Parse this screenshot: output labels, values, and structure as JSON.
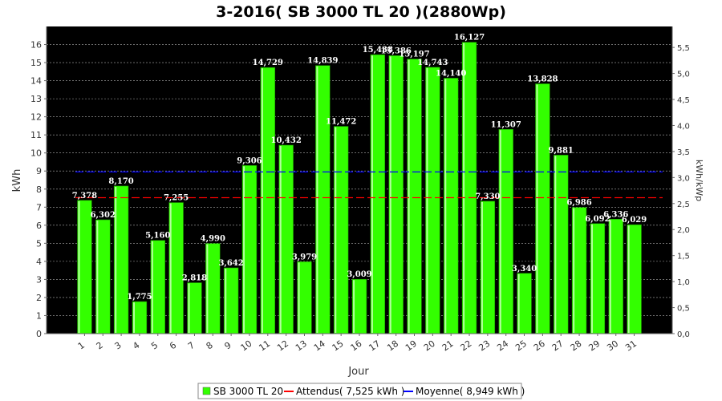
{
  "chart_data": {
    "type": "bar",
    "title": "3-2016( SB 3000 TL 20 )(2880Wp)",
    "xlabel": "Jour",
    "ylabel": "kWh",
    "y2label": "kWh/kWp",
    "categories": [
      "1",
      "2",
      "3",
      "4",
      "5",
      "6",
      "7",
      "8",
      "9",
      "10",
      "11",
      "12",
      "13",
      "14",
      "15",
      "16",
      "17",
      "18",
      "19",
      "20",
      "21",
      "22",
      "23",
      "24",
      "25",
      "26",
      "27",
      "28",
      "29",
      "30",
      "31"
    ],
    "series": [
      {
        "name": "SB 3000 TL 20",
        "color": "#33ff00",
        "values": [
          7.378,
          6.302,
          8.17,
          1.775,
          5.16,
          7.255,
          2.818,
          4.99,
          3.642,
          9.306,
          14.729,
          10.432,
          3.979,
          14.839,
          11.472,
          3.009,
          15.438,
          15.386,
          15.197,
          14.743,
          14.14,
          16.127,
          7.33,
          11.307,
          3.34,
          13.828,
          9.881,
          6.986,
          6.092,
          6.336,
          6.029
        ],
        "labels": [
          "7,378",
          "6,302",
          "8,170",
          "1,775",
          "5,160",
          "7,255",
          "2,818",
          "4,990",
          "3,642",
          "9,306",
          "14,729",
          "10,432",
          "3,979",
          "14,839",
          "11,472",
          "3,009",
          "15,438",
          "15,386",
          "15,197",
          "14,743",
          "14,140",
          "16,127",
          "7,330",
          "11,307",
          "3,340",
          "13,828",
          "9,881",
          "6,986",
          "6,092",
          "6,336",
          "6,029"
        ]
      }
    ],
    "reference_lines": [
      {
        "name": "Attendus( 7,525 kWh )",
        "value": 7.525,
        "color": "#ff0000",
        "style": "dashed"
      },
      {
        "name": "Moyenne( 8,949 kWh )",
        "value": 8.949,
        "color": "#0000ff",
        "style": "dashed"
      }
    ],
    "ylim": [
      0,
      17
    ],
    "yticks": [
      "0",
      "1",
      "2",
      "3",
      "4",
      "5",
      "6",
      "7",
      "8",
      "9",
      "10",
      "11",
      "12",
      "13",
      "14",
      "15",
      "16"
    ],
    "y2lim": [
      0,
      5.9028
    ],
    "y2ticks": [
      {
        "value": 0.0,
        "label": "0,0"
      },
      {
        "value": 0.5,
        "label": "0,5"
      },
      {
        "value": 1.0,
        "label": "1,0"
      },
      {
        "value": 1.5,
        "label": "1,5"
      },
      {
        "value": 2.0,
        "label": "2,0"
      },
      {
        "value": 2.5,
        "label": "2,5"
      },
      {
        "value": 3.0,
        "label": "3,0"
      },
      {
        "value": 3.5,
        "label": "3,5"
      },
      {
        "value": 4.0,
        "label": "4,0"
      },
      {
        "value": 4.5,
        "label": "4,5"
      },
      {
        "value": 5.0,
        "label": "5,0"
      },
      {
        "value": 5.5,
        "label": "5,5"
      }
    ],
    "grid": true,
    "background": "#000000",
    "legend": {
      "position": "bottom",
      "items": [
        "SB 3000 TL 20",
        "Attendus( 7,525 kWh )",
        "Moyenne( 8,949 kWh )"
      ]
    }
  }
}
